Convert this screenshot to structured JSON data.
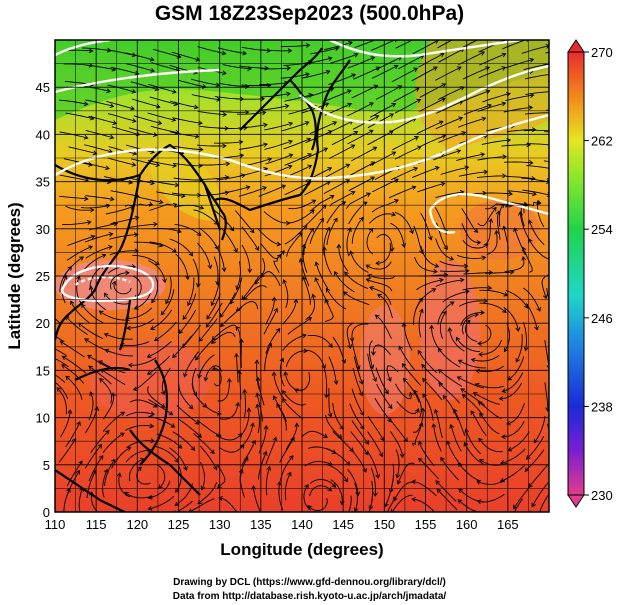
{
  "title": "GSM 18Z23Sep2023 (500.0hPa)",
  "map": {
    "xlabel": "Longitude (degrees)",
    "ylabel": "Latitude  (degrees)",
    "lon_ticks": [
      "110",
      "115",
      "120",
      "125",
      "130",
      "135",
      "140",
      "145",
      "150",
      "155",
      "160",
      "165"
    ],
    "lat_ticks": [
      "0",
      "5",
      "10",
      "15",
      "20",
      "25",
      "30",
      "35",
      "40",
      "45"
    ],
    "lon_range": [
      110,
      170
    ],
    "lat_range": [
      0,
      50
    ]
  },
  "colorbar": {
    "ticks": [
      "270",
      "262",
      "254",
      "246",
      "238",
      "230"
    ],
    "range": [
      230,
      270
    ],
    "colors": [
      "#e23c8c",
      "#7a1fd0",
      "#1a2bd6",
      "#1f8be0",
      "#1fd6c8",
      "#22d34a",
      "#8ee82a",
      "#e4e622",
      "#f39a1c",
      "#ef5a22",
      "#e82c2e"
    ]
  },
  "credits": {
    "line1": "Drawing by DCL (https://www.gfd-dennou.org/library/dcl/)",
    "line2": "Data from http://database.rish.kyoto-u.ac.jp/arch/jmadata/"
  }
}
